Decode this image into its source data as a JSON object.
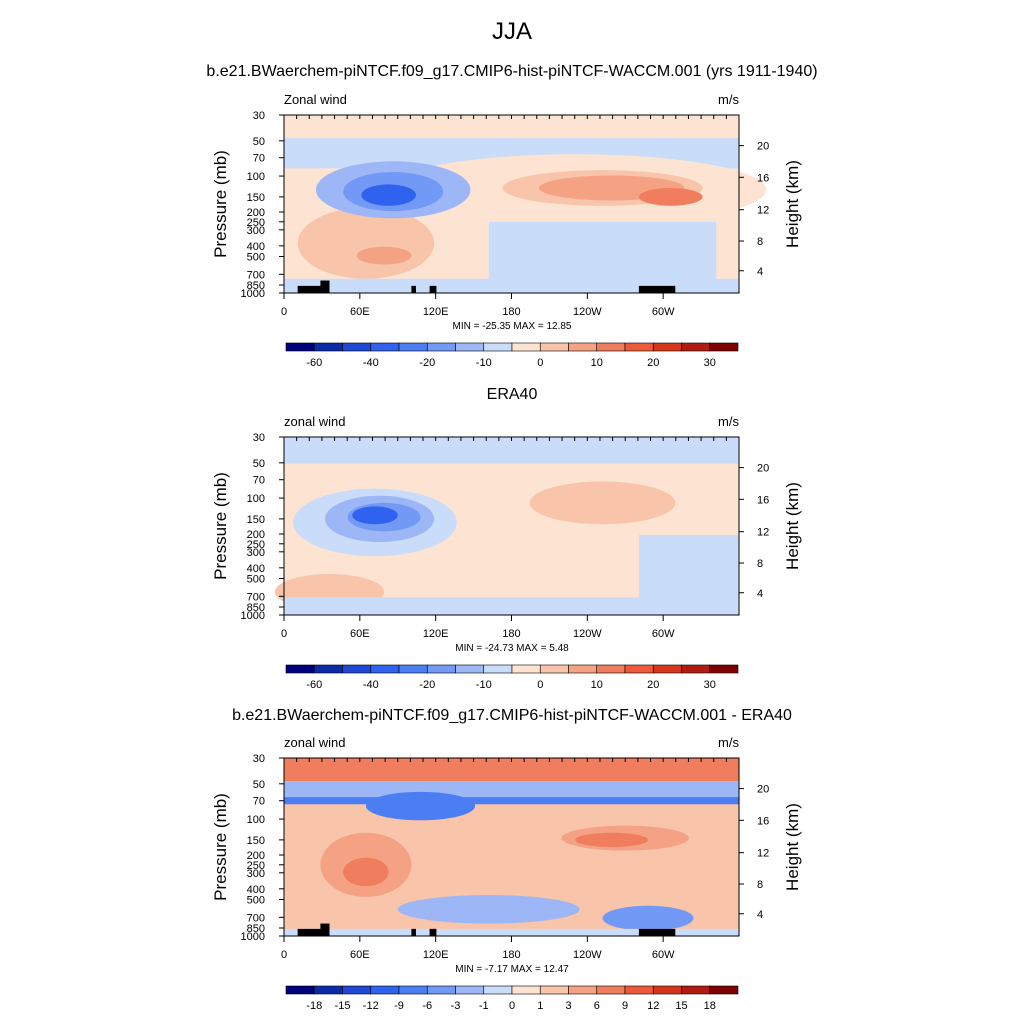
{
  "main_title": "JJA",
  "chart_data": [
    {
      "type": "heatmap",
      "title": "b.e21.BWaerchem-piNTCF.f09_g17.CMIP6-hist-piNTCF-WACCM.001 (yrs 1911-1940)",
      "left_label": "Zonal wind",
      "right_label": "m/s",
      "ylabel": "Pressure (mb)",
      "ylabel_right": "Height (km)",
      "x_ticks": [
        "0",
        "60E",
        "120E",
        "180",
        "120W",
        "60W"
      ],
      "y_ticks": [
        "30",
        "50",
        "70",
        "100",
        "150",
        "200",
        "250",
        "300",
        "400",
        "500",
        "700",
        "850",
        "1000"
      ],
      "y_ticks_right": [
        "20",
        "16",
        "12",
        "8",
        "4"
      ],
      "stats": "MIN = -25.35  MAX =  12.85",
      "min": -25.35,
      "max": 12.85,
      "colorbar_labels": [
        "-60",
        "-40",
        "-20",
        "-10",
        "0",
        "10",
        "20",
        "30"
      ],
      "colors": [
        "#00007f",
        "#0a2aa8",
        "#1f48d6",
        "#2f62ee",
        "#4b7ef2",
        "#7199f5",
        "#9db6f6",
        "#c9dcfa",
        "#fde4d2",
        "#f8c4aa",
        "#f4a283",
        "#f07e5e",
        "#ec5a37",
        "#d8361c",
        "#b01c12",
        "#7f0000"
      ]
    },
    {
      "type": "heatmap",
      "title": "ERA40",
      "left_label": "zonal wind",
      "right_label": "m/s",
      "ylabel": "Pressure (mb)",
      "ylabel_right": "Height (km)",
      "x_ticks": [
        "0",
        "60E",
        "120E",
        "180",
        "120W",
        "60W"
      ],
      "y_ticks": [
        "30",
        "50",
        "70",
        "100",
        "150",
        "200",
        "250",
        "300",
        "400",
        "500",
        "700",
        "850",
        "1000"
      ],
      "y_ticks_right": [
        "20",
        "16",
        "12",
        "8",
        "4"
      ],
      "stats": "MIN = -24.73  MAX =   5.48",
      "min": -24.73,
      "max": 5.48,
      "colorbar_labels": [
        "-60",
        "-40",
        "-20",
        "-10",
        "0",
        "10",
        "20",
        "30"
      ],
      "colors": [
        "#00007f",
        "#0a2aa8",
        "#1f48d6",
        "#2f62ee",
        "#4b7ef2",
        "#7199f5",
        "#9db6f6",
        "#c9dcfa",
        "#fde4d2",
        "#f8c4aa",
        "#f4a283",
        "#f07e5e",
        "#ec5a37",
        "#d8361c",
        "#b01c12",
        "#7f0000"
      ]
    },
    {
      "type": "heatmap",
      "title": "b.e21.BWaerchem-piNTCF.f09_g17.CMIP6-hist-piNTCF-WACCM.001 - ERA40",
      "left_label": "zonal wind",
      "right_label": "m/s",
      "ylabel": "Pressure (mb)",
      "ylabel_right": "Height (km)",
      "x_ticks": [
        "0",
        "60E",
        "120E",
        "180",
        "120W",
        "60W"
      ],
      "y_ticks": [
        "30",
        "50",
        "70",
        "100",
        "150",
        "200",
        "250",
        "300",
        "400",
        "500",
        "700",
        "850",
        "1000"
      ],
      "y_ticks_right": [
        "20",
        "16",
        "12",
        "8",
        "4"
      ],
      "stats": "MIN =  -7.17  MAX =  12.47",
      "min": -7.17,
      "max": 12.47,
      "colorbar_labels": [
        "-18",
        "-15",
        "-12",
        "-9",
        "-6",
        "-3",
        "-1",
        "0",
        "1",
        "3",
        "6",
        "9",
        "12",
        "15",
        "18"
      ],
      "colors": [
        "#00007f",
        "#0a2aa8",
        "#1f48d6",
        "#2f62ee",
        "#4b7ef2",
        "#7199f5",
        "#9db6f6",
        "#c9dcfa",
        "#fde4d2",
        "#f8c4aa",
        "#f4a283",
        "#f07e5e",
        "#ec5a37",
        "#d8361c",
        "#b01c12",
        "#7f0000"
      ]
    }
  ]
}
